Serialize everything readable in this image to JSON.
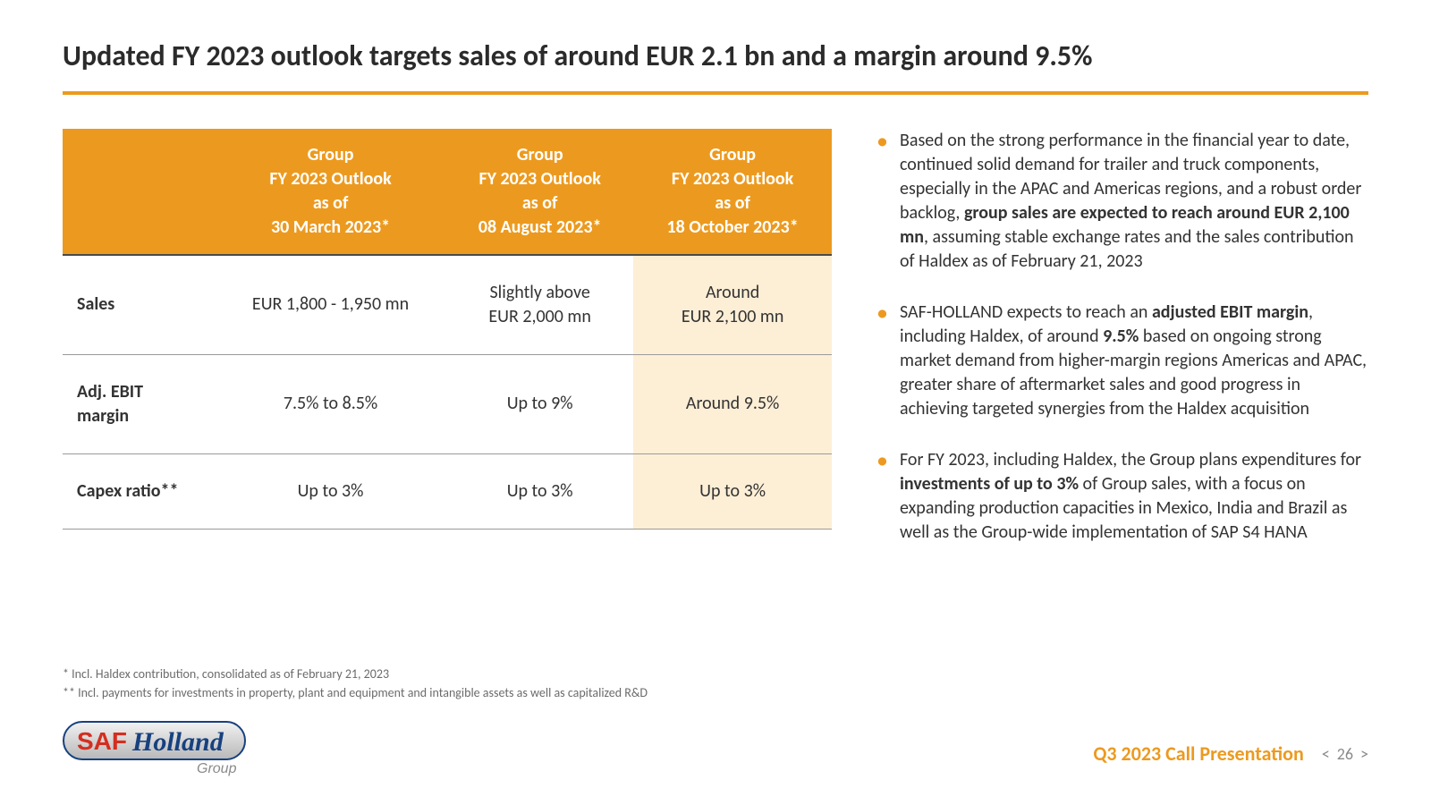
{
  "colors": {
    "accent": "#ec9a1f",
    "highlight_bg": "#fdefd6",
    "text": "#333333",
    "title": "#2b2b2b",
    "footnote": "#6b6b6b",
    "row_border": "#9a9a9a",
    "header_border": "#4a4a4a",
    "page_nav": "#8a8a8a",
    "white": "#ffffff"
  },
  "typography": {
    "title_fontsize": 32,
    "header_fontsize": 20,
    "cell_fontsize": 20,
    "bullet_fontsize": 20,
    "footnote_fontsize": 14,
    "footer_label_fontsize": 22
  },
  "title": "Updated FY 2023 outlook targets sales of around EUR 2.1 bn and a margin around 9.5%",
  "table": {
    "header_bg": "#ec9a1f",
    "header_text_color": "#ffffff",
    "highlight_column_index": 3,
    "columns": [
      "",
      "Group\nFY 2023 Outlook\nas of\n30 March 2023*",
      "Group\nFY 2023 Outlook\nas of\n08 August 2023*",
      "Group\nFY 2023 Outlook\nas of\n18 October 2023*"
    ],
    "rows": [
      {
        "label": "Sales",
        "cells": [
          "EUR 1,800 - 1,950 mn",
          "Slightly above\nEUR 2,000 mn",
          "Around\nEUR 2,100 mn"
        ]
      },
      {
        "label": "Adj. EBIT\nmargin",
        "cells": [
          "7.5% to 8.5%",
          "Up to 9%",
          "Around 9.5%"
        ]
      },
      {
        "label": "Capex ratio**",
        "cells": [
          "Up to 3%",
          "Up to 3%",
          "Up to 3%"
        ]
      }
    ]
  },
  "bullets": [
    "Based on the strong performance in the financial year to date, continued solid demand for trailer and truck components, especially in the APAC and Americas regions, and a robust order backlog, <b>group sales are expected to reach around EUR 2,100 mn</b>, assuming stable exchange rates and the sales contribution of Haldex as of February 21, 2023",
    "SAF-HOLLAND expects to reach an <b>adjusted EBIT margin</b>, including Haldex, of around <b>9.5%</b> based on ongoing strong market demand from higher-margin regions Americas and APAC, greater share of aftermarket sales and good progress in achieving targeted synergies from the Haldex acquisition",
    "For FY 2023, including Haldex, the Group plans expenditures for <b>investments of up to 3%</b> of Group sales, with a focus on expanding production capacities in Mexico, India and Brazil as well as the Group-wide implementation of SAP S4 HANA"
  ],
  "footnotes": [
    "* Incl. Haldex contribution, consolidated as of February 21, 2023",
    "** Incl. payments for investments in property, plant and equipment and intangible assets as well as capitalized R&D"
  ],
  "logo": {
    "name": "SAF-Holland Group",
    "saf_text": "SAF",
    "holland_text": "Holland",
    "group_text": "Group",
    "saf_color": "#d42e1f",
    "holland_color": "#17417f",
    "group_color": "#8a8a8a",
    "bg_top": "#f2f2f2",
    "bg_bottom": "#b8b8b8",
    "border": "#17417f"
  },
  "footer": {
    "label": "Q3 2023 Call Presentation",
    "page": "26",
    "prev": "<",
    "next": ">"
  }
}
